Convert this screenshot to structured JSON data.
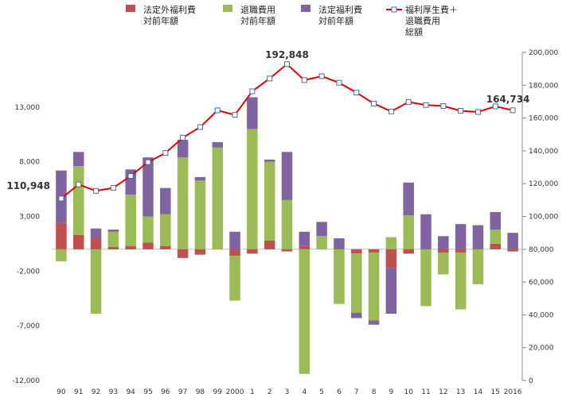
{
  "chart_data": {
    "type": "bar",
    "title": "",
    "xlabel": "",
    "ylabel": "",
    "categories": [
      "90",
      "91",
      "92",
      "93",
      "94",
      "95",
      "96",
      "97",
      "98",
      "99",
      "2000",
      "1",
      "2",
      "3",
      "4",
      "5",
      "6",
      "7",
      "8",
      "9",
      "10",
      "11",
      "12",
      "13",
      "14",
      "15",
      "2016"
    ],
    "ylim_left": [
      -12000,
      18000
    ],
    "left_ticks": [
      13000,
      8000,
      3000,
      -2000,
      -7000,
      -12000
    ],
    "left_tick_labels": [
      "13,000",
      "8,000",
      "3,000",
      "-2,000",
      "-7,000",
      "-12,000"
    ],
    "ylim_right": [
      0,
      200000
    ],
    "right_ticks": [
      0,
      20000,
      40000,
      60000,
      80000,
      100000,
      120000,
      140000,
      160000,
      180000,
      200000
    ],
    "right_tick_labels": [
      "0",
      "20,000",
      "40,000",
      "60,000",
      "80,000",
      "100,000",
      "120,000",
      "140,000",
      "160,000",
      "180,000",
      "200,000"
    ],
    "series": [
      {
        "name": "法定外福利費\n対前年額",
        "color": "#c0504d",
        "axis": "left",
        "kind": "stacked-bar",
        "values": [
          2400,
          1300,
          1000,
          200,
          300,
          600,
          300,
          -800,
          -500,
          0,
          -600,
          -400,
          800,
          -200,
          300,
          0,
          0,
          -400,
          -300,
          -1700,
          -400,
          0,
          -300,
          -300,
          0,
          500,
          -200
        ]
      },
      {
        "name": "退職費用\n対前年額",
        "color": "#9bbb59",
        "axis": "left",
        "kind": "stacked-bar",
        "values": [
          -1100,
          6300,
          -5900,
          1400,
          4700,
          2400,
          2900,
          8400,
          6300,
          9300,
          -4100,
          11000,
          7200,
          4500,
          -11400,
          1200,
          -5000,
          -5400,
          -6200,
          1100,
          3100,
          -5200,
          -2000,
          -5200,
          -3200,
          1300,
          0
        ]
      },
      {
        "name": "法定福利費\n対前年額",
        "color": "#8064a2",
        "axis": "left",
        "kind": "stacked-bar",
        "values": [
          4800,
          1300,
          900,
          200,
          2300,
          5400,
          2400,
          1600,
          300,
          500,
          1600,
          2900,
          200,
          4400,
          1300,
          1300,
          1000,
          -500,
          -400,
          -4200,
          3000,
          3200,
          1200,
          2300,
          2200,
          1600,
          1500
        ]
      },
      {
        "name": "福利厚生費＋\n退職費用\n総額",
        "color": "#e00000",
        "axis": "right",
        "kind": "line",
        "values": [
          110948,
          119500,
          115600,
          117400,
          124700,
          133100,
          138700,
          148000,
          154500,
          164700,
          161900,
          176300,
          184100,
          192848,
          183100,
          185500,
          181500,
          175500,
          168800,
          164000,
          169800,
          167900,
          167300,
          164400,
          163700,
          167100,
          164734
        ]
      }
    ],
    "annotations": [
      {
        "text": "110,948",
        "series_index": 3,
        "category": "90"
      },
      {
        "text": "192,848",
        "series_index": 3,
        "category": "3"
      },
      {
        "text": "164,734",
        "series_index": 3,
        "category": "2016"
      }
    ],
    "legend_position": "top",
    "grid": false
  }
}
